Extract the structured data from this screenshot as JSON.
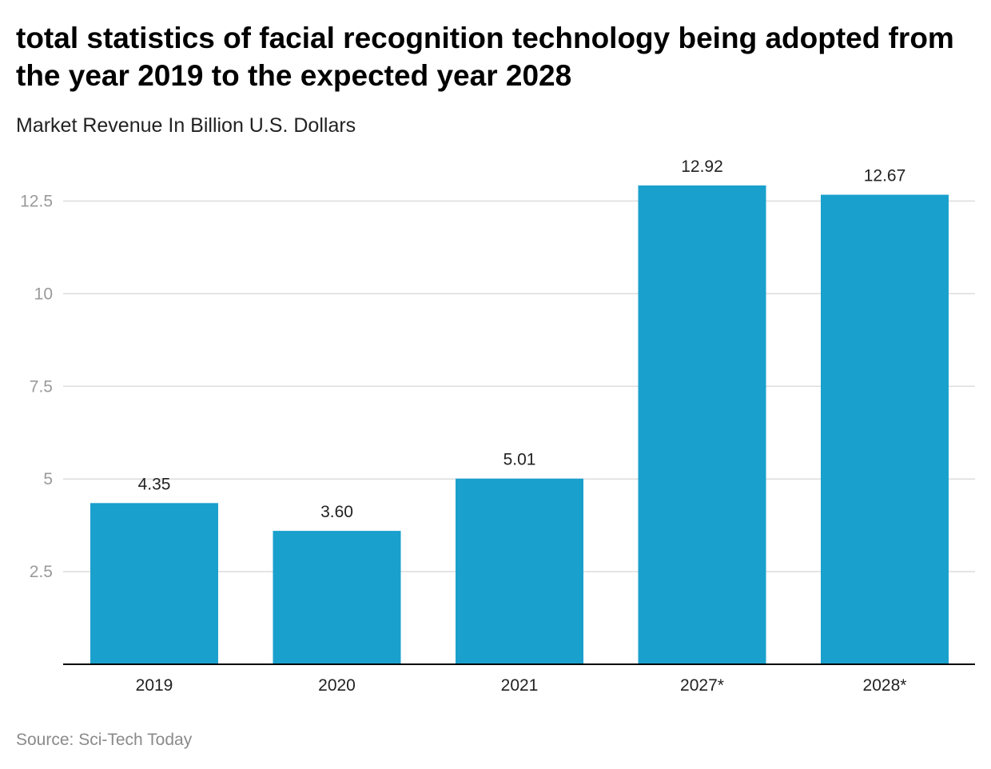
{
  "chart_data": {
    "type": "bar",
    "title": "total statistics of facial recognition technology being adopted from the year 2019 to the expected year 2028",
    "subtitle": "Market Revenue In Billion U.S. Dollars",
    "categories": [
      "2019",
      "2020",
      "2021",
      "2027*",
      "2028*"
    ],
    "values": [
      4.35,
      3.6,
      5.01,
      12.92,
      12.67
    ],
    "value_labels": [
      "4.35",
      "3.60",
      "5.01",
      "12.92",
      "12.67"
    ],
    "yticks": [
      2.5,
      5,
      7.5,
      10,
      12.5
    ],
    "ytick_labels": [
      "2.5",
      "5",
      "7.5",
      "10",
      "12.5"
    ],
    "ylim": [
      0,
      12.92
    ],
    "grid": true,
    "xlabel": "",
    "ylabel": "",
    "bar_color": "#1aa0cc",
    "source": "Source: Sci-Tech Today"
  }
}
